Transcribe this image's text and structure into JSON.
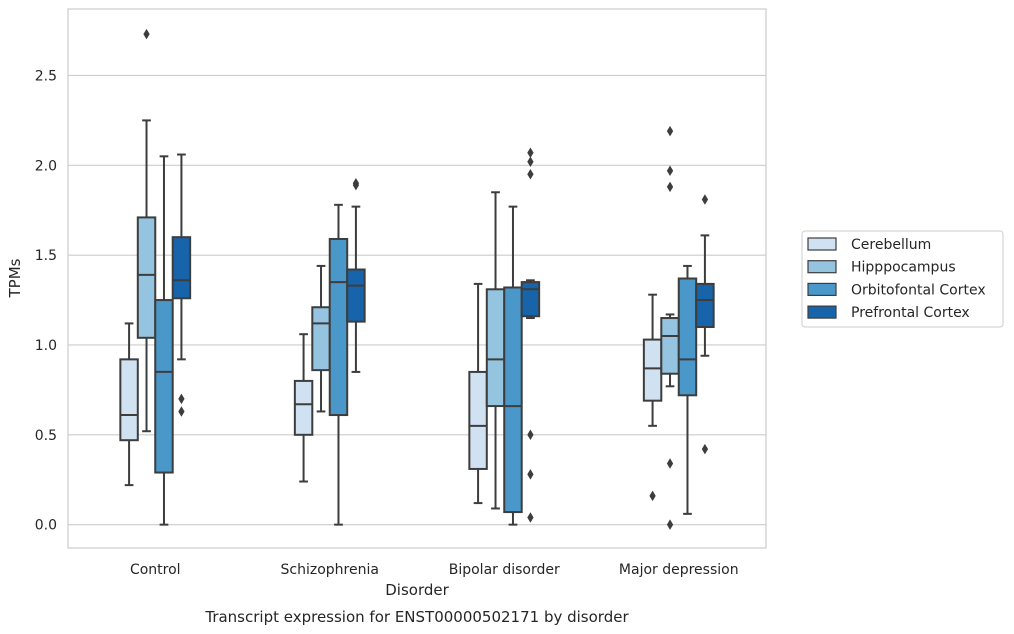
{
  "chart_data": {
    "type": "box",
    "caption": "Transcript expression for ENST00000502171 by disorder",
    "xlabel": "Disorder",
    "ylabel": "TPMs",
    "ylim": [
      -0.13,
      2.87
    ],
    "yticks": [
      0.0,
      0.5,
      1.0,
      1.5,
      2.0,
      2.5
    ],
    "ytick_labels": [
      "0.0",
      "0.5",
      "1.0",
      "1.5",
      "2.0",
      "2.5"
    ],
    "grid": "horizontal",
    "legend_position": "right",
    "categories": [
      "Control",
      "Schizophrenia",
      "Bipolar disorder",
      "Major depression"
    ],
    "series": [
      {
        "name": "Cerebellum",
        "color": "#d0e1f2",
        "boxes": [
          {
            "whisker_low": 0.22,
            "q1": 0.47,
            "median": 0.61,
            "q3": 0.92,
            "whisker_high": 1.12,
            "outliers": []
          },
          {
            "whisker_low": 0.24,
            "q1": 0.5,
            "median": 0.67,
            "q3": 0.8,
            "whisker_high": 1.06,
            "outliers": []
          },
          {
            "whisker_low": 0.12,
            "q1": 0.31,
            "median": 0.55,
            "q3": 0.85,
            "whisker_high": 1.34,
            "outliers": []
          },
          {
            "whisker_low": 0.55,
            "q1": 0.69,
            "median": 0.87,
            "q3": 1.03,
            "whisker_high": 1.28,
            "outliers": [
              0.16
            ]
          }
        ]
      },
      {
        "name": "Hipppocampus",
        "color": "#94c4df",
        "boxes": [
          {
            "whisker_low": 0.52,
            "q1": 1.04,
            "median": 1.39,
            "q3": 1.71,
            "whisker_high": 2.25,
            "outliers": [
              2.73
            ]
          },
          {
            "whisker_low": 0.63,
            "q1": 0.86,
            "median": 1.12,
            "q3": 1.21,
            "whisker_high": 1.44,
            "outliers": []
          },
          {
            "whisker_low": 0.09,
            "q1": 0.66,
            "median": 0.92,
            "q3": 1.31,
            "whisker_high": 1.85,
            "outliers": []
          },
          {
            "whisker_low": 0.77,
            "q1": 0.84,
            "median": 1.05,
            "q3": 1.15,
            "whisker_high": 1.17,
            "outliers": [
              0.0,
              0.34,
              1.88,
              1.97,
              2.19
            ]
          }
        ]
      },
      {
        "name": "Orbitofontal Cortex",
        "color": "#4a98c9",
        "boxes": [
          {
            "whisker_low": 0.0,
            "q1": 0.29,
            "median": 0.85,
            "q3": 1.25,
            "whisker_high": 2.05,
            "outliers": []
          },
          {
            "whisker_low": 0.0,
            "q1": 0.61,
            "median": 1.35,
            "q3": 1.59,
            "whisker_high": 1.78,
            "outliers": []
          },
          {
            "whisker_low": 0.0,
            "q1": 0.07,
            "median": 0.66,
            "q3": 1.32,
            "whisker_high": 1.77,
            "outliers": []
          },
          {
            "whisker_low": 0.06,
            "q1": 0.72,
            "median": 0.92,
            "q3": 1.37,
            "whisker_high": 1.44,
            "outliers": []
          }
        ]
      },
      {
        "name": "Prefrontal Cortex",
        "color": "#1764ab",
        "boxes": [
          {
            "whisker_low": 0.92,
            "q1": 1.26,
            "median": 1.36,
            "q3": 1.6,
            "whisker_high": 2.06,
            "outliers": [
              0.63,
              0.7
            ]
          },
          {
            "whisker_low": 0.85,
            "q1": 1.13,
            "median": 1.33,
            "q3": 1.42,
            "whisker_high": 1.77,
            "outliers": [
              1.89,
              1.9
            ]
          },
          {
            "whisker_low": 1.15,
            "q1": 1.16,
            "median": 1.31,
            "q3": 1.35,
            "whisker_high": 1.36,
            "outliers": [
              0.04,
              0.28,
              0.5,
              1.95,
              2.02,
              2.07
            ]
          },
          {
            "whisker_low": 0.94,
            "q1": 1.1,
            "median": 1.25,
            "q3": 1.34,
            "whisker_high": 1.61,
            "outliers": [
              0.42,
              1.81
            ]
          }
        ]
      }
    ]
  }
}
